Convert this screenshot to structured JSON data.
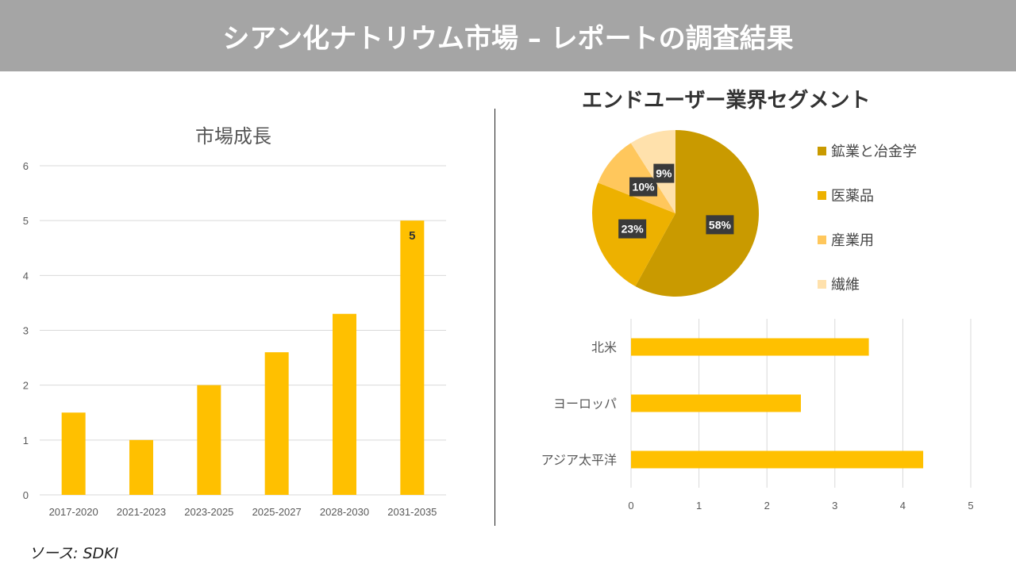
{
  "header": {
    "title": "シアン化ナトリウム市場 – レポートの調査結果"
  },
  "source": "ソース: SDKI",
  "chart_data": [
    {
      "type": "bar",
      "title": "市場成長",
      "categories": [
        "2017-2020",
        "2021-2023",
        "2023-2025",
        "2025-2027",
        "2028-2030",
        "2031-2035"
      ],
      "values": [
        1.5,
        1,
        2,
        2.6,
        3.3,
        5
      ],
      "ylim": [
        0,
        6
      ],
      "yticks": [
        "0",
        "1",
        "2",
        "3",
        "4",
        "5",
        "6"
      ],
      "data_labels": {
        "5": "5"
      },
      "grid": true,
      "color": "#FFC000"
    },
    {
      "type": "pie",
      "title": "エンドユーザー業界セグメント",
      "labels": [
        "鉱業と冶金学",
        "医薬品",
        "産業用",
        "繊維"
      ],
      "values": [
        58,
        23,
        10,
        9
      ],
      "value_labels": [
        "58%",
        "23%",
        "10%",
        "9%"
      ],
      "colors": [
        "#C99A00",
        "#EDB100",
        "#FFC75C",
        "#FFE1AC"
      ],
      "legend": "right"
    },
    {
      "type": "bar",
      "orientation": "horizontal",
      "categories": [
        "北米",
        "ヨーロッパ",
        "アジア太平洋"
      ],
      "values": [
        3.5,
        2.5,
        4.3
      ],
      "xlim": [
        0,
        5
      ],
      "xticks": [
        "0",
        "1",
        "2",
        "3",
        "4",
        "5"
      ],
      "grid": true,
      "color": "#FFC000"
    }
  ]
}
